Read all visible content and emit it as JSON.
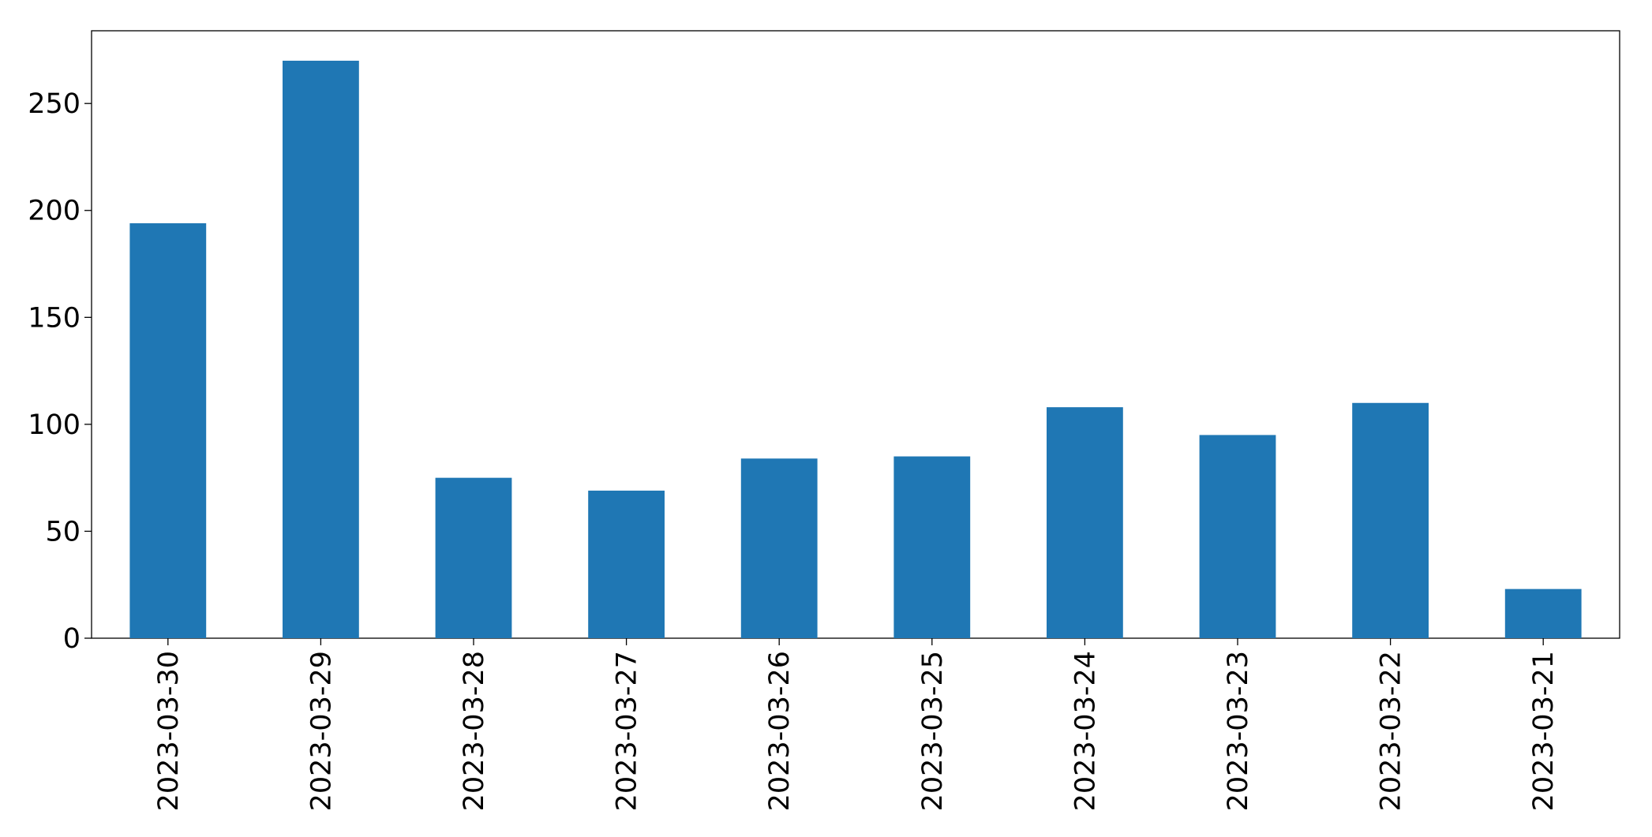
{
  "chart_data": {
    "type": "bar",
    "categories": [
      "2023-03-30",
      "2023-03-29",
      "2023-03-28",
      "2023-03-27",
      "2023-03-26",
      "2023-03-25",
      "2023-03-24",
      "2023-03-23",
      "2023-03-22",
      "2023-03-21"
    ],
    "values": [
      194,
      270,
      75,
      69,
      84,
      85,
      108,
      95,
      110,
      23
    ],
    "color": "#1f77b4",
    "ylim": [
      0,
      284
    ],
    "yticks": [
      0,
      50,
      100,
      150,
      200,
      250
    ],
    "grid": false
  }
}
